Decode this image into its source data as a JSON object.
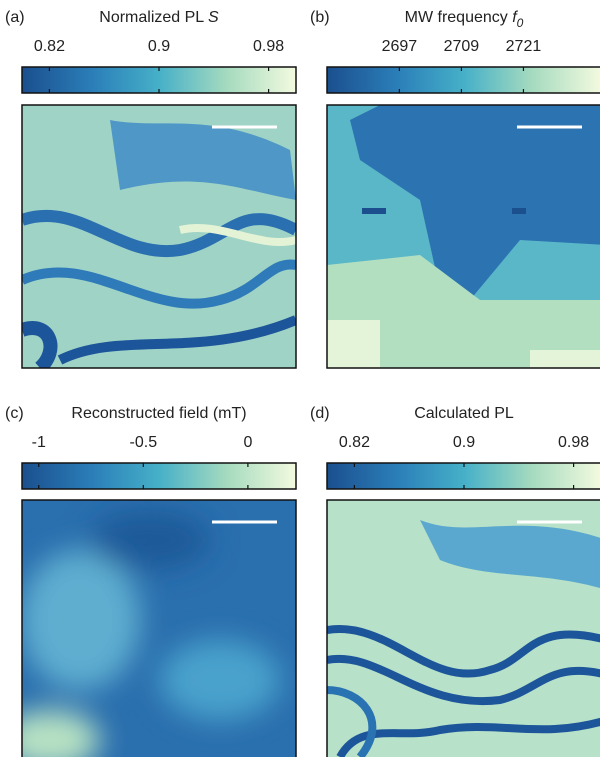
{
  "chart_data": [
    {
      "type": "heatmap",
      "label": "(a)",
      "title": "Normalized PL ",
      "title_symbol": "S",
      "clim": [
        0.8,
        1.0
      ],
      "ticks": [
        0.82,
        0.9,
        0.98
      ],
      "colormap": [
        "#1b4f8e",
        "#2a7db8",
        "#46b0c8",
        "#a6dbbf",
        "#f3fadf"
      ]
    },
    {
      "type": "heatmap",
      "label": "(b)",
      "title": "MW frequency ",
      "title_symbol": "f",
      "title_subscript": "0",
      "clim": [
        2683,
        2736
      ],
      "ticks": [
        2697,
        2709,
        2721
      ],
      "colormap": [
        "#1b4f8e",
        "#2a7db8",
        "#46b0c8",
        "#a6dbbf",
        "#f3fadf"
      ]
    },
    {
      "type": "heatmap",
      "label": "(c)",
      "title": "Reconstructed field (mT)",
      "clim": [
        -1.08,
        0.23
      ],
      "ticks": [
        -1,
        -0.5,
        0
      ],
      "colormap": [
        "#1b4f8e",
        "#2a7db8",
        "#46b0c8",
        "#a6dbbf",
        "#f3fadf"
      ]
    },
    {
      "type": "heatmap",
      "label": "(d)",
      "title": "Calculated PL",
      "clim": [
        0.8,
        1.0
      ],
      "ticks": [
        0.82,
        0.9,
        0.98
      ],
      "colormap": [
        "#1b4f8e",
        "#2a7db8",
        "#46b0c8",
        "#a6dbbf",
        "#f3fadf"
      ]
    }
  ]
}
